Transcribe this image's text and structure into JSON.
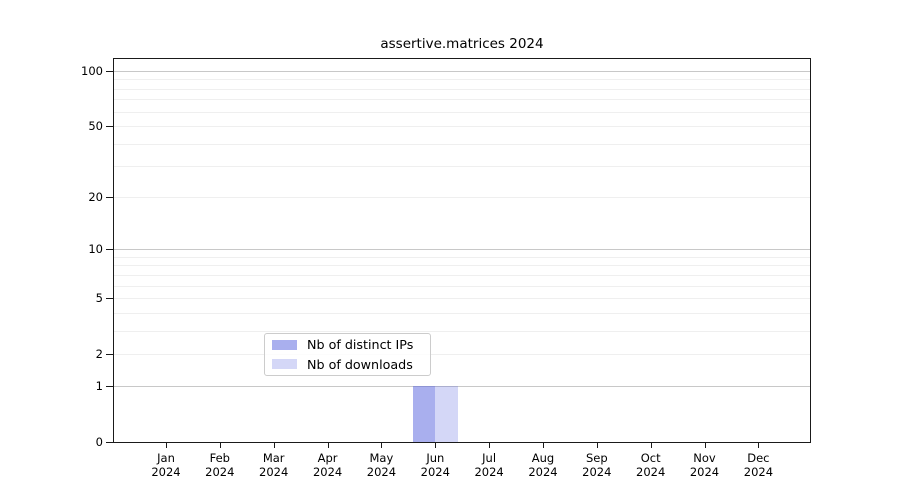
{
  "title": "assertive.matrices 2024",
  "chart_data": {
    "type": "bar",
    "title": "assertive.matrices 2024",
    "categories": [
      "Jan 2024",
      "Feb 2024",
      "Mar 2024",
      "Apr 2024",
      "May 2024",
      "Jun 2024",
      "Jul 2024",
      "Aug 2024",
      "Sep 2024",
      "Oct 2024",
      "Nov 2024",
      "Dec 2024"
    ],
    "x_axis": {
      "months": [
        "Jan",
        "Feb",
        "Mar",
        "Apr",
        "May",
        "Jun",
        "Jul",
        "Aug",
        "Sep",
        "Oct",
        "Nov",
        "Dec"
      ],
      "year": "2024"
    },
    "y_axis": {
      "scale": "log10(1+x)",
      "ylim": [
        0,
        116
      ],
      "tick_values": [
        100,
        50,
        20,
        10,
        5,
        2,
        1,
        0
      ],
      "major_gridlines": [
        100,
        10,
        1
      ],
      "minor_gridlines": [
        2,
        3,
        4,
        5,
        6,
        7,
        8,
        9,
        20,
        30,
        40,
        50,
        60,
        70,
        80,
        90
      ],
      "grid": "horizontal"
    },
    "series": [
      {
        "name": "Nb of distinct IPs",
        "color": "#5460de80",
        "color_flat": "#aab1ef",
        "values": [
          0,
          0,
          0,
          0,
          0,
          1,
          0,
          0,
          0,
          0,
          0,
          0
        ]
      },
      {
        "name": "Nb of downloads",
        "color": "#5460de40",
        "color_flat": "#d9dcf9",
        "values": [
          0,
          0,
          0,
          0,
          0,
          1,
          0,
          0,
          0,
          0,
          0,
          0
        ]
      }
    ],
    "legend": {
      "position": "inside-bottom-center"
    }
  },
  "colors": {
    "background": "#ffffff",
    "spine": "#1a1a1a",
    "grid_major": "#c8c8c8",
    "grid_minor": "#efefef",
    "legend_border": "#cccccc",
    "text": "#000000"
  }
}
